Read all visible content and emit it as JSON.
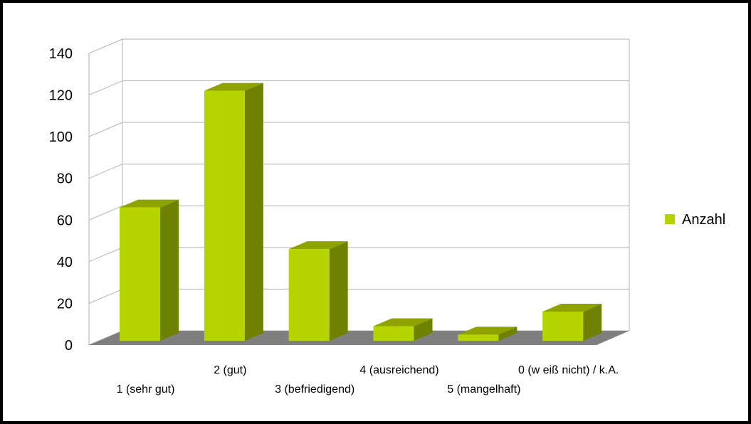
{
  "chart_data": {
    "type": "bar",
    "categories": [
      "1 (sehr gut)",
      "2 (gut)",
      "3 (befriedigend)",
      "4 (ausreichend)",
      "5 (mangelhaft)",
      "0 (w eiß nicht) / k.A."
    ],
    "series": [
      {
        "name": "Anzahl",
        "values": [
          64,
          120,
          44,
          7,
          3,
          14
        ]
      }
    ],
    "yticks": [
      "0",
      "20",
      "40",
      "60",
      "80",
      "100",
      "120",
      "140"
    ],
    "ylim": [
      0,
      140
    ],
    "grid": true,
    "legend_position": "right",
    "colors": {
      "bar_front": "#b5d400",
      "bar_side": "#6f8200",
      "bar_top": "#8ea300",
      "floor": "#7f7f7f",
      "gridline": "#b3b3b3"
    }
  }
}
